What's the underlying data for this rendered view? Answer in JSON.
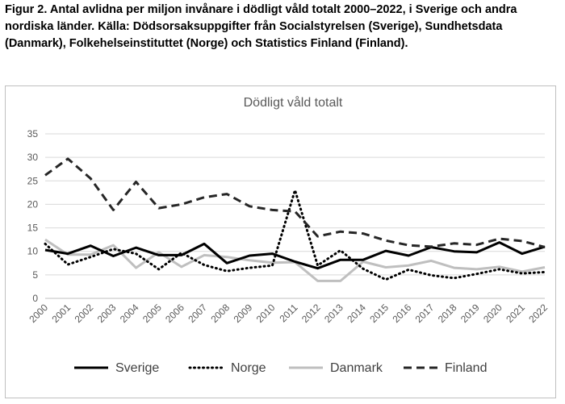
{
  "figure": {
    "caption": "Figur 2. Antal avlidna per miljon invånare i dödligt våld totalt 2000–2022, i Sverige och andra nordiska länder. Källa: Dödsorsaksuppgifter från Socialstyrelsen (Sverige), Sundhetsdata (Danmark), Folkehelseinstituttet (Norge) och Statistics Finland (Finland)."
  },
  "chart_data": {
    "type": "line",
    "title": "Dödligt våld totalt",
    "xlabel": "",
    "ylabel": "",
    "ylim": [
      0,
      35
    ],
    "yticks": [
      0,
      5,
      10,
      15,
      20,
      25,
      30,
      35
    ],
    "grid": true,
    "legend_position": "bottom",
    "x": [
      "2000",
      "2001",
      "2002",
      "2003",
      "2004",
      "2005",
      "2006",
      "2007",
      "2008",
      "2009",
      "2010",
      "2011",
      "2012",
      "2013",
      "2014",
      "2015",
      "2016",
      "2017",
      "2018",
      "2019",
      "2020",
      "2021",
      "2022"
    ],
    "series": [
      {
        "name": "Sverige",
        "style": "solid",
        "color": "#000000",
        "values": [
          10.3,
          9.5,
          11.2,
          9.0,
          10.8,
          9.2,
          9.2,
          11.6,
          7.5,
          9.1,
          9.5,
          7.8,
          6.4,
          8.2,
          8.2,
          10.1,
          9.1,
          10.9,
          10.0,
          9.8,
          11.9,
          9.5,
          11.0
        ]
      },
      {
        "name": "Norge",
        "style": "dotted",
        "color": "#000000",
        "values": [
          11.6,
          7.2,
          8.8,
          10.5,
          9.5,
          6.2,
          9.7,
          7.1,
          5.8,
          6.5,
          7.0,
          23.0,
          7.0,
          10.2,
          6.3,
          4.0,
          6.1,
          4.9,
          4.3,
          5.2,
          6.2,
          5.3,
          5.6
        ]
      },
      {
        "name": "Danmark",
        "style": "solid",
        "color": "#bfbfbf",
        "values": [
          12.5,
          9.3,
          9.3,
          11.3,
          6.5,
          9.8,
          6.7,
          9.2,
          8.8,
          8.1,
          7.6,
          7.7,
          3.7,
          3.7,
          7.8,
          6.6,
          7.0,
          8.0,
          6.5,
          6.2,
          6.7,
          5.7,
          6.6
        ]
      },
      {
        "name": "Finland",
        "style": "dashed",
        "color": "#262626",
        "values": [
          26.2,
          29.7,
          25.5,
          18.8,
          24.8,
          19.2,
          20.0,
          21.5,
          22.2,
          19.6,
          18.8,
          18.5,
          13.2,
          14.2,
          13.8,
          12.3,
          11.3,
          11.0,
          11.7,
          11.4,
          12.7,
          12.2,
          10.9
        ]
      }
    ]
  }
}
